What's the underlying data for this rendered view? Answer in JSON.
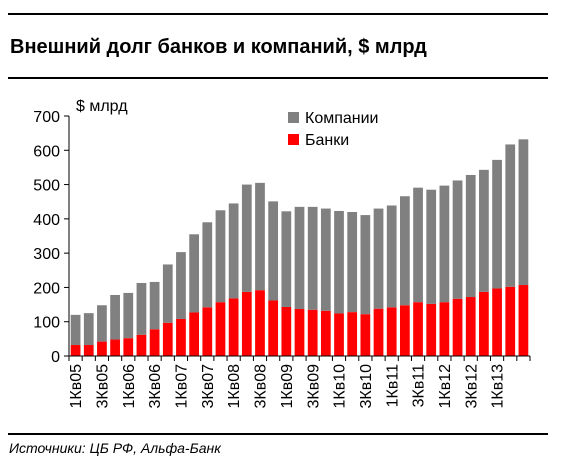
{
  "title": "Внешний долг банков и компаний, $ млрд",
  "source": "Источники: ЦБ РФ, Альфа-Банк",
  "colors": {
    "companies": "#808080",
    "banks": "#ff0000"
  },
  "chart_data": {
    "type": "bar",
    "stacked": true,
    "ylabel": "$ млрд",
    "ylim": [
      0,
      700
    ],
    "yticks": [
      0,
      100,
      200,
      300,
      400,
      500,
      600,
      700
    ],
    "grid": false,
    "legend": "top-right",
    "categories": [
      "1Кв05",
      "2Кв05",
      "3Кв05",
      "4Кв05",
      "1Кв06",
      "2Кв06",
      "3Кв06",
      "4Кв06",
      "1Кв07",
      "2Кв07",
      "3Кв07",
      "4Кв07",
      "1Кв08",
      "2Кв08",
      "3Кв08",
      "4Кв08",
      "1Кв09",
      "2Кв09",
      "3Кв09",
      "4Кв09",
      "1Кв10",
      "2Кв10",
      "3Кв10",
      "4Кв10",
      "1Кв11",
      "2Кв11",
      "3Кв11",
      "4Кв11",
      "1Кв12",
      "2Кв12",
      "3Кв12",
      "4Кв12",
      "1Кв13",
      "2Кв13",
      "3Кв13"
    ],
    "xtick_labels": [
      "1Кв05",
      "3Кв05",
      "1Кв06",
      "3Кв06",
      "1Кв07",
      "3Кв07",
      "1Кв08",
      "3Кв08",
      "1Кв09",
      "3Кв09",
      "1Кв10",
      "3Кв10",
      "1Кв11",
      "3Кв11",
      "1Кв12",
      "3Кв12",
      "1Кв13"
    ],
    "series": [
      {
        "name": "Банки",
        "values": [
          32,
          32,
          42,
          48,
          52,
          62,
          78,
          97,
          108,
          127,
          142,
          157,
          168,
          187,
          192,
          162,
          143,
          137,
          135,
          132,
          124,
          128,
          122,
          138,
          142,
          148,
          157,
          152,
          157,
          167,
          172,
          187,
          197,
          202,
          207
        ]
      },
      {
        "name": "Компании",
        "values": [
          88,
          93,
          106,
          130,
          132,
          151,
          138,
          170,
          195,
          228,
          248,
          268,
          277,
          313,
          313,
          289,
          279,
          298,
          300,
          298,
          299,
          292,
          289,
          292,
          297,
          318,
          334,
          333,
          340,
          345,
          356,
          356,
          375,
          415,
          425
        ]
      }
    ]
  }
}
